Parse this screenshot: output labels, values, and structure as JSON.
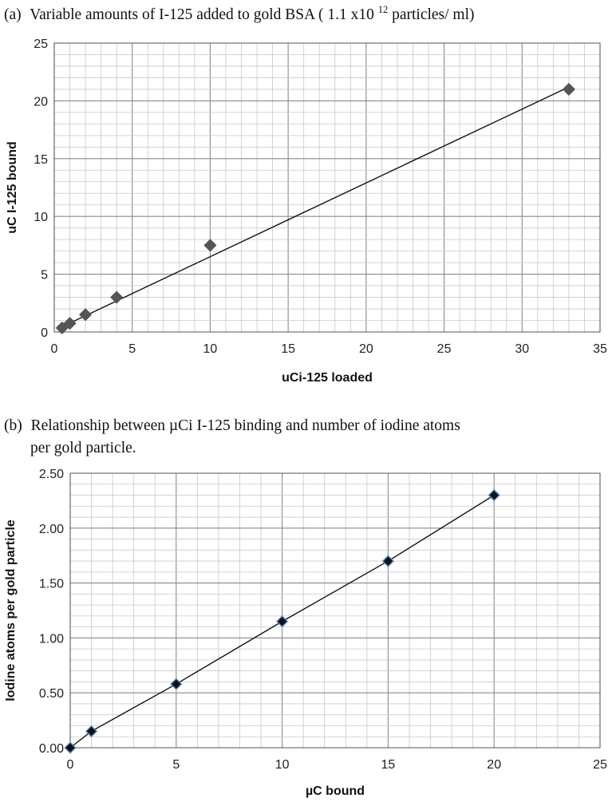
{
  "chart_data": [
    {
      "type": "scatter",
      "panel_label": "(a)",
      "title": "Variable amounts of I-125 added to gold BSA ( 1.1 x10",
      "title_superscript": "12",
      "title_suffix": " particles/ ml)",
      "xlabel": "uCi-125 loaded",
      "ylabel": "uC I-125 bound",
      "xlim": [
        0,
        35
      ],
      "ylim": [
        0,
        25
      ],
      "x_ticks": [
        "0",
        "5",
        "10",
        "15",
        "20",
        "25",
        "30",
        "35"
      ],
      "y_ticks": [
        "0",
        "5",
        "10",
        "15",
        "20",
        "25"
      ],
      "x_tick_values": [
        0,
        5,
        10,
        15,
        20,
        25,
        30,
        35
      ],
      "y_tick_values": [
        0,
        5,
        10,
        15,
        20,
        25
      ],
      "grid": true,
      "marker": "diamond",
      "marker_color": "#555555",
      "series": [
        {
          "x": [
            0.5,
            1,
            2,
            4,
            10,
            33
          ],
          "y": [
            0.35,
            0.75,
            1.5,
            3.0,
            7.5,
            21.0
          ]
        }
      ],
      "trendline": {
        "x": [
          0.5,
          33
        ],
        "y": [
          0.45,
          21.2
        ]
      }
    },
    {
      "type": "line",
      "panel_label": "(b)",
      "title_line1": "Relationship between µCi  I-125 binding and number of iodine atoms",
      "title_line2": "per gold particle.",
      "xlabel": "µC bound",
      "ylabel": "Iodine atoms per gold particle",
      "xlim": [
        0,
        25
      ],
      "ylim": [
        0,
        2.5
      ],
      "x_ticks": [
        "0",
        "5",
        "10",
        "15",
        "20",
        "25"
      ],
      "y_ticks": [
        "0.00",
        "0.50",
        "1.00",
        "1.50",
        "2.00",
        "2.50"
      ],
      "x_tick_values": [
        0,
        5,
        10,
        15,
        20,
        25
      ],
      "y_tick_values": [
        0,
        0.5,
        1.0,
        1.5,
        2.0,
        2.5
      ],
      "grid": true,
      "marker": "diamond",
      "marker_color": "#111111",
      "marker_edge_color": "#4a7ebb",
      "series": [
        {
          "x": [
            0,
            1,
            5,
            10,
            15,
            20
          ],
          "y": [
            0.0,
            0.15,
            0.58,
            1.15,
            1.7,
            2.3
          ]
        }
      ]
    }
  ]
}
